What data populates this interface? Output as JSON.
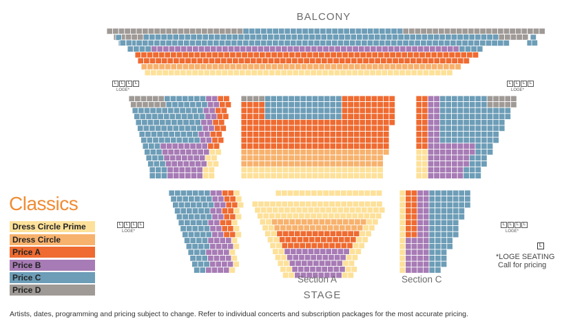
{
  "labels": {
    "balcony": "BALCONY",
    "stage": "STAGE",
    "section_a": "Section A",
    "section_c": "Section C",
    "loge": "LOGE*",
    "loge_key": "L",
    "loge_note_line1": "*LOGE SEATING",
    "loge_note_line2": "Call for pricing"
  },
  "title": "Classics",
  "legend": [
    {
      "label": "Dress Circle Prime",
      "color": "#fde19a"
    },
    {
      "label": "Dress Circle",
      "color": "#f7b26e"
    },
    {
      "label": "Price A",
      "color": "#ef6b31"
    },
    {
      "label": "Price B",
      "color": "#a77bb5"
    },
    {
      "label": "Price C",
      "color": "#6d9db7"
    },
    {
      "label": "Price D",
      "color": "#9f9a96"
    }
  ],
  "colors": {
    "prime": "#fde19a",
    "dress": "#f7b26e",
    "a": "#ef6b31",
    "b": "#a77bb5",
    "c": "#6d9db7",
    "d": "#9f9a96"
  },
  "disclaimer": "Artists, dates, programming and pricing subject to change. Refer to individual concerts and subscription packages for the most accurate pricing."
}
